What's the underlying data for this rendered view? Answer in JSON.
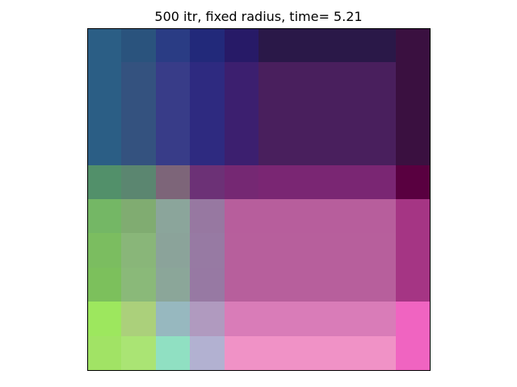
{
  "chart_data": {
    "type": "heatmap",
    "title": "500 itr, fixed radius, time= 5.21",
    "xlabel": "",
    "ylabel": "",
    "axes_visible": false,
    "grid": false,
    "rows": 10,
    "columns": 10,
    "cells": [
      [
        "#2b5e85",
        "#2a537d",
        "#2a3c84",
        "#22297a",
        "#271a67",
        "#2a1848",
        "#2a1848",
        "#2a1848",
        "#2a1848",
        "#3a1040"
      ],
      [
        "#2b5e85",
        "#34527f",
        "#383c88",
        "#2e2a80",
        "#3c1f6f",
        "#491f5d",
        "#491f5d",
        "#491f5d",
        "#491f5d",
        "#3a1040"
      ],
      [
        "#2b5e85",
        "#34527f",
        "#383c88",
        "#2e2a80",
        "#3c1f6f",
        "#491f5d",
        "#491f5d",
        "#491f5d",
        "#491f5d",
        "#3a1040"
      ],
      [
        "#2b5e85",
        "#34527f",
        "#383c88",
        "#2e2a80",
        "#3c1f6f",
        "#491f5d",
        "#491f5d",
        "#491f5d",
        "#491f5d",
        "#3a1040"
      ],
      [
        "#52906a",
        "#5b8670",
        "#7d6579",
        "#6c3176",
        "#752873",
        "#7a2673",
        "#7a2673",
        "#7a2673",
        "#7a2673",
        "#590040"
      ],
      [
        "#74b765",
        "#80ac71",
        "#8ba59b",
        "#9778a1",
        "#b75e9c",
        "#b75e9c",
        "#b75e9c",
        "#b75e9c",
        "#b75e9c",
        "#a53584"
      ],
      [
        "#7bbd60",
        "#89b679",
        "#8ba39a",
        "#977aa3",
        "#b75f9c",
        "#b75f9c",
        "#b75f9c",
        "#b75f9c",
        "#b75f9c",
        "#a53584"
      ],
      [
        "#7cc05c",
        "#8ab979",
        "#8ba699",
        "#9779a3",
        "#b75f9c",
        "#b75f9c",
        "#b75f9c",
        "#b75f9c",
        "#b75f9c",
        "#a53584"
      ],
      [
        "#9de75e",
        "#abd07b",
        "#97b8bf",
        "#b09abf",
        "#d97cb8",
        "#d97cb8",
        "#d97cb8",
        "#d97cb8",
        "#d97cb8",
        "#f064c1"
      ],
      [
        "#a1e365",
        "#aae474",
        "#90e0c2",
        "#b2b1d1",
        "#f092c6",
        "#f092c6",
        "#f092c6",
        "#f092c6",
        "#f092c6",
        "#f064c1"
      ]
    ]
  }
}
